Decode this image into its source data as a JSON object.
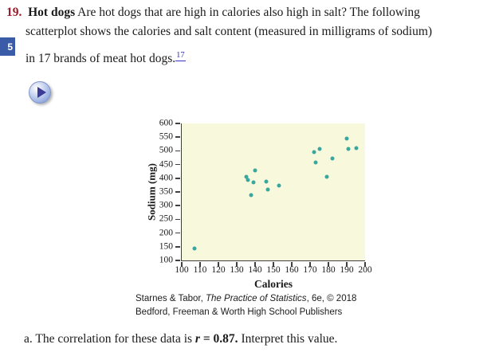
{
  "problem": {
    "number": "19.",
    "title": "Hot dogs",
    "line1_rest": " Are hot dogs that are high in calories also high in salt? The following",
    "line2": "scatterplot shows the calories and salt content (measured in milligrams of sodium)",
    "line3": "in 17 brands of meat hot dogs.",
    "footnote_label": "17"
  },
  "page_badge": "5",
  "chart_data": {
    "type": "scatter",
    "title": "",
    "xlabel": "Calories",
    "ylabel": "Sodium (mg)",
    "xlim": [
      100,
      200
    ],
    "ylim": [
      100,
      600
    ],
    "x_ticks": [
      100,
      110,
      120,
      130,
      140,
      150,
      160,
      170,
      180,
      190,
      200
    ],
    "y_ticks": [
      100,
      150,
      200,
      250,
      300,
      350,
      400,
      450,
      500,
      550,
      600
    ],
    "grid": false,
    "legend": false,
    "point_color": "#3aa79f",
    "plot_background": "#f7f8dc",
    "points": [
      [
        107,
        144
      ],
      [
        135,
        405
      ],
      [
        136,
        393
      ],
      [
        138,
        339
      ],
      [
        139,
        386
      ],
      [
        140,
        428
      ],
      [
        146,
        387
      ],
      [
        147,
        360
      ],
      [
        153,
        372
      ],
      [
        172,
        496
      ],
      [
        173,
        458
      ],
      [
        175,
        507
      ],
      [
        179,
        405
      ],
      [
        182,
        473
      ],
      [
        190,
        545
      ],
      [
        191,
        506
      ],
      [
        195,
        511
      ]
    ]
  },
  "attribution": {
    "line1_pre": "Starnes & Tabor, ",
    "line1_title": "The Practice of Statistics",
    "line1_post": ", 6e, © 2018",
    "line2": "Bedford, Freeman & Worth High School Publishers"
  },
  "part_a": {
    "label": "a. ",
    "text_pre": "The correlation for these data is ",
    "r_symbol": "r",
    "r_value": " = 0.87.",
    "text_post": " Interpret this value."
  }
}
